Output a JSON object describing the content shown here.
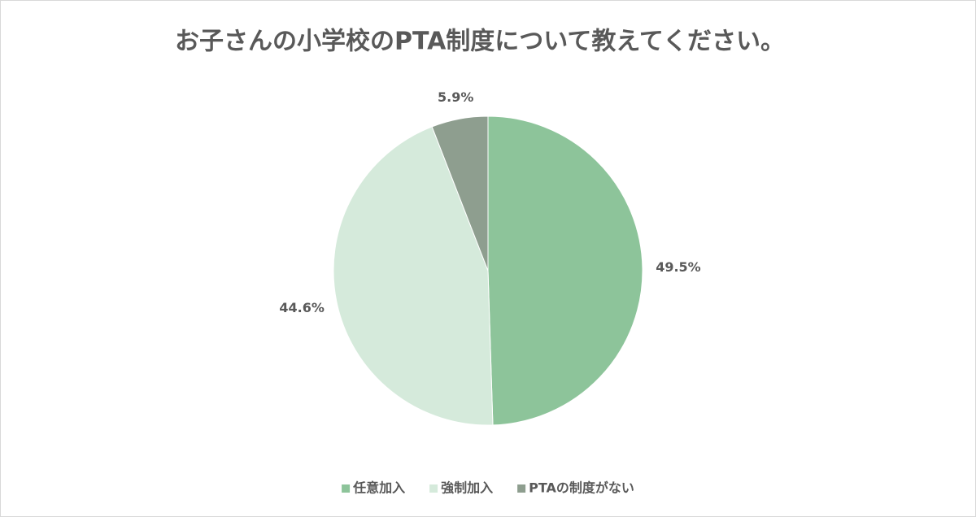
{
  "chart_data": {
    "type": "pie",
    "title": "お子さんの小学校のPTA制度について教えてください。",
    "categories": [
      "任意加入",
      "強制加入",
      "PTAの制度がない"
    ],
    "values": [
      49.5,
      44.6,
      5.9
    ],
    "value_labels": [
      "49.5%",
      "44.6%",
      "5.9%"
    ],
    "colors": [
      "#8dc49a",
      "#d5eadb",
      "#8e9e8f"
    ]
  }
}
